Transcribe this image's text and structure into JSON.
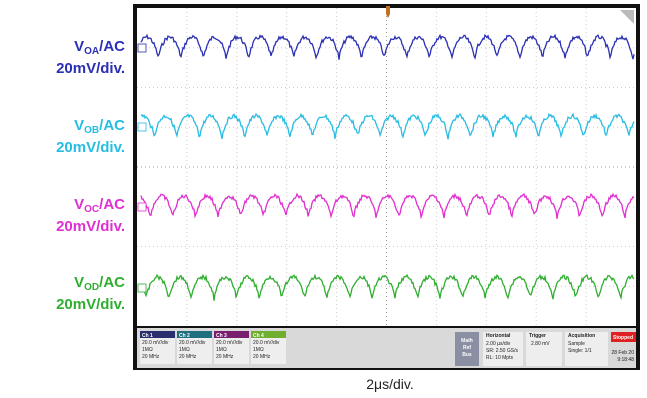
{
  "channels": [
    {
      "label": {
        "main": "V",
        "sub": "OA",
        "suffix": "/AC"
      },
      "scale": "20mV/div.",
      "box": [
        "Ch 1",
        "20.0 mV/div",
        "1MΩ",
        "20 MHz"
      ]
    },
    {
      "label": {
        "main": "V",
        "sub": "OB",
        "suffix": "/AC"
      },
      "scale": "20mV/div.",
      "box": [
        "Ch 2",
        "20.0 mV/div",
        "1MΩ",
        "20 MHz"
      ]
    },
    {
      "label": {
        "main": "V",
        "sub": "OC",
        "suffix": "/AC"
      },
      "scale": "20mV/div.",
      "box": [
        "Ch 3",
        "20.0 mV/div",
        "1MΩ",
        "20 MHz"
      ]
    },
    {
      "label": {
        "main": "V",
        "sub": "OD",
        "suffix": "/AC"
      },
      "scale": "20mV/div.",
      "box": [
        "Ch 4",
        "20.0 mV/div",
        "1MΩ",
        "20 MHz"
      ]
    }
  ],
  "status": {
    "math": [
      "Math",
      "Ref",
      "Bus"
    ],
    "horizontal": [
      "Horizontal",
      "2.00 µs/div",
      "SR: 2.50 GS/s",
      "RL: 10 Mpts"
    ],
    "trigger": [
      "Trigger",
      "2.80 mV"
    ],
    "acquisition": [
      "Acquisition",
      "Sample",
      "Single: 1/1"
    ],
    "state": "Stopped",
    "date": "28 Feb 20",
    "time": "9:18:48"
  },
  "timebase": "2μs/div."
}
